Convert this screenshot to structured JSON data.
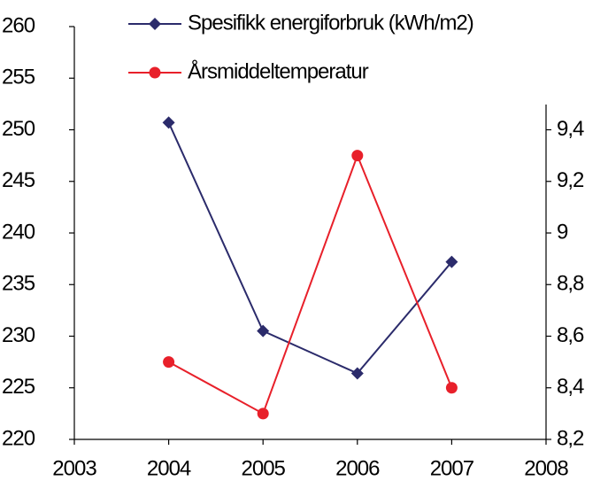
{
  "chart_data": {
    "type": "line",
    "x": [
      2004,
      2005,
      2006,
      2007
    ],
    "series": [
      {
        "name": "Spesifikk energiforbruk (kWh/m2)",
        "color": "#2b2b6b",
        "marker": "diamond",
        "values": [
          250.7,
          230.5,
          226.4,
          237.2
        ]
      },
      {
        "name": "Årsmiddeltemperatur",
        "color": "#e8202a",
        "marker": "circle",
        "axis": "y2",
        "values": [
          8.5,
          8.3,
          9.3,
          8.4
        ]
      }
    ],
    "xlim": [
      2003,
      2008
    ],
    "xticks": [
      2003,
      2004,
      2005,
      2006,
      2007,
      2008
    ],
    "ylim": [
      220,
      260
    ],
    "yticks": [
      220,
      225,
      230,
      235,
      240,
      245,
      250,
      255,
      260
    ],
    "y2lim": [
      8.2,
      9.8
    ],
    "y2ticks": [
      {
        "value": 8.2,
        "label": "8,2"
      },
      {
        "value": 8.4,
        "label": "8,4"
      },
      {
        "value": 8.6,
        "label": "8,6"
      },
      {
        "value": 8.8,
        "label": "8,8"
      },
      9,
      {
        "value": 9.2,
        "label": "9,2"
      },
      {
        "value": 9.4,
        "label": "9,4"
      }
    ],
    "legend": "top"
  }
}
